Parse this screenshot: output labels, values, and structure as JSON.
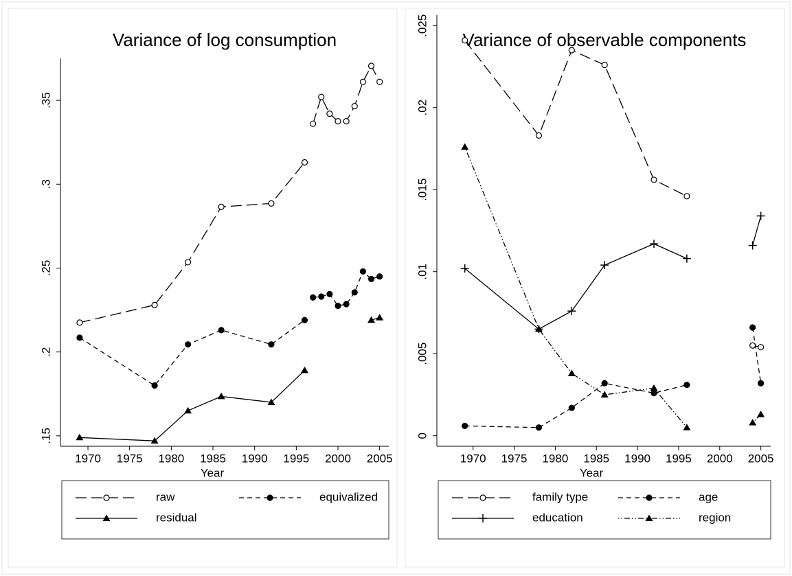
{
  "chart_data": [
    {
      "type": "line",
      "title": "Variance of log consumption",
      "x_label": "Year",
      "x": [
        1969,
        1978,
        1982,
        1986,
        1992,
        1996,
        null,
        1997,
        1998,
        1999,
        2000,
        2001,
        2002,
        2003,
        2004,
        2005
      ],
      "series": [
        {
          "name": "raw",
          "color": "#000000",
          "marker": "open-circle",
          "dash": "longdash",
          "values": [
            0.2175,
            0.228,
            0.2535,
            0.2865,
            0.2885,
            0.313,
            null,
            0.336,
            0.352,
            0.342,
            0.3375,
            0.3375,
            0.3465,
            0.361,
            0.3705,
            0.361
          ]
        },
        {
          "name": "equivalized",
          "color": "#000000",
          "marker": "filled-circle",
          "dash": "shortdash",
          "values": [
            0.2085,
            0.18,
            0.2045,
            0.213,
            0.2045,
            0.219,
            null,
            0.2325,
            0.233,
            0.2345,
            0.2275,
            0.2285,
            0.2355,
            0.248,
            0.2435,
            0.245
          ]
        },
        {
          "name": "residual",
          "color": "#000000",
          "marker": "triangle",
          "dash": "solid",
          "values": [
            0.149,
            0.147,
            0.165,
            0.1735,
            0.17,
            0.189,
            null,
            null,
            null,
            null,
            null,
            null,
            null,
            null,
            0.219,
            0.2205
          ]
        }
      ],
      "xlim": [
        1966.7,
        2006.1
      ],
      "xticks": [
        1970,
        1975,
        1980,
        1985,
        1990,
        1995,
        2000,
        2005
      ],
      "ylim": [
        0.1438,
        0.375
      ],
      "yticks": [
        {
          "value": 0.15,
          "label": ".15"
        },
        {
          "value": 0.2,
          "label": ".2"
        },
        {
          "value": 0.25,
          "label": ".25"
        },
        {
          "value": 0.3,
          "label": ".3"
        },
        {
          "value": 0.35,
          "label": ".35"
        }
      ],
      "grid": false
    },
    {
      "type": "line",
      "title": "Variance of observable components",
      "x_label": "Year",
      "x": [
        1969,
        1978,
        1982,
        1986,
        1992,
        1996,
        null,
        2004,
        2005
      ],
      "series": [
        {
          "name": "family type",
          "color": "#000000",
          "marker": "open-circle",
          "dash": "longdash",
          "values": [
            0.0241,
            0.0183,
            0.0235,
            0.0226,
            0.0156,
            0.0146,
            null,
            0.0055,
            0.0054
          ]
        },
        {
          "name": "age",
          "color": "#000000",
          "marker": "filled-circle",
          "dash": "shortdash",
          "values": [
            0.0006,
            0.0005,
            0.0017,
            0.0032,
            0.0026,
            0.0031,
            null,
            0.0066,
            0.0032
          ]
        },
        {
          "name": "education",
          "color": "#000000",
          "marker": "plus",
          "dash": "solid",
          "values": [
            0.0102,
            0.0065,
            0.0076,
            0.0104,
            0.0117,
            0.0108,
            null,
            0.0116,
            0.0134
          ]
        },
        {
          "name": "region",
          "color": "#000000",
          "marker": "triangle",
          "dash": "dashdot",
          "values": [
            0.0176,
            0.0065,
            0.0038,
            0.0025,
            0.0029,
            0.0005,
            null,
            0.0008,
            0.0013
          ]
        }
      ],
      "xlim": [
        1965.6,
        2006.2
      ],
      "xticks": [
        1970,
        1975,
        1980,
        1985,
        1990,
        1995,
        2000,
        2005
      ],
      "ylim": [
        -0.00064,
        0.02564
      ],
      "yticks": [
        0,
        {
          "value": 0.005,
          "label": ".005"
        },
        {
          "value": 0.01,
          "label": ".01"
        },
        {
          "value": 0.015,
          "label": ".015"
        },
        {
          "value": 0.02,
          "label": ".02"
        },
        {
          "value": 0.025,
          "label": ".025"
        }
      ],
      "grid": false
    }
  ]
}
